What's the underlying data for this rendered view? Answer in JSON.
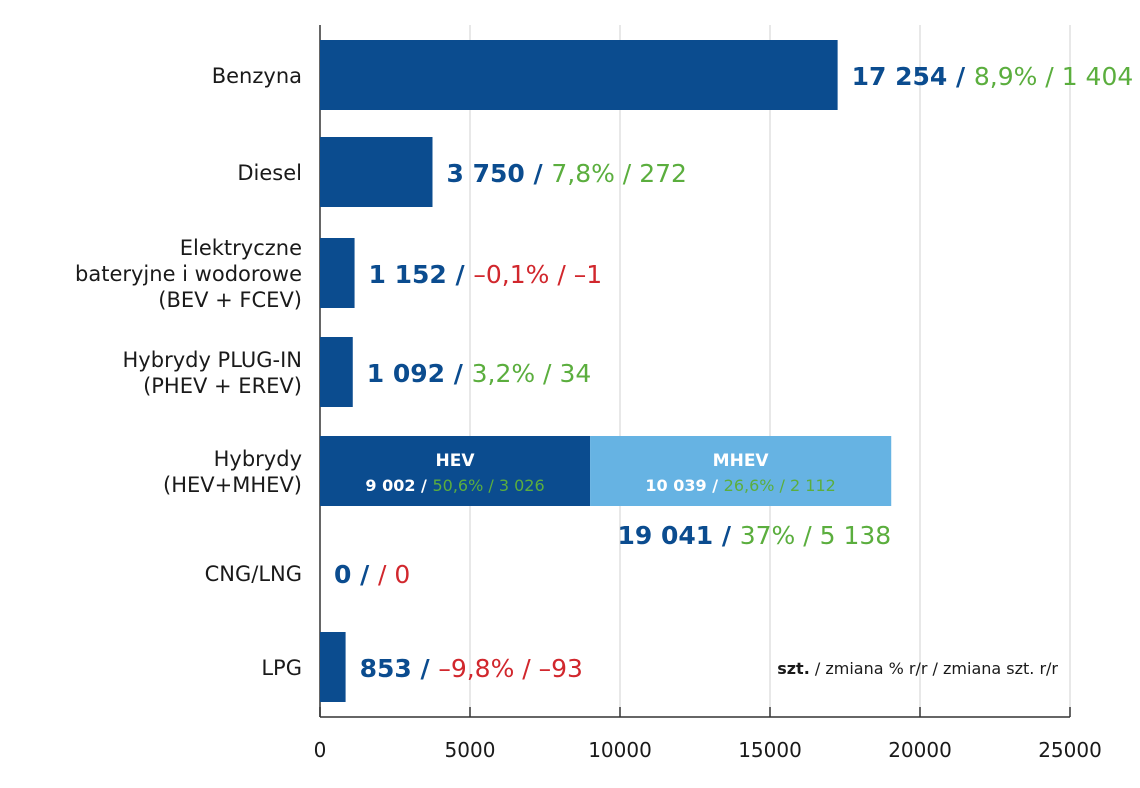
{
  "chart_data": {
    "type": "bar",
    "orientation": "horizontal",
    "xlim": [
      0,
      25000
    ],
    "xticks": [
      "0",
      "5000",
      "10000",
      "15000",
      "20000",
      "25000"
    ],
    "grid": true,
    "colors": {
      "bar": "#0B4C8F",
      "bar_light": "#66B3E3",
      "positive": "#5BAE3E",
      "negative": "#D1272D",
      "value": "#0B4C8F",
      "text": "#1a1a1a",
      "grid": "#d0d0d0"
    },
    "categories": [
      {
        "label": [
          "Benzyna"
        ],
        "value": 17254,
        "value_text": "17 254",
        "pct": "8,9%",
        "diff": "1 404",
        "trend": "positive"
      },
      {
        "label": [
          "Diesel"
        ],
        "value": 3750,
        "value_text": "3 750",
        "pct": "7,8%",
        "diff": "272",
        "trend": "positive"
      },
      {
        "label": [
          "Elektryczne",
          "bateryjne i wodorowe",
          "(BEV + FCEV)"
        ],
        "value": 1152,
        "value_text": "1 152",
        "pct": "–0,1%",
        "diff": "–1",
        "trend": "negative"
      },
      {
        "label": [
          "Hybrydy PLUG-IN",
          "(PHEV + EREV)"
        ],
        "value": 1092,
        "value_text": "1 092",
        "pct": "3,2%",
        "diff": "34",
        "trend": "positive"
      },
      {
        "label": [
          "Hybrydy",
          "(HEV+MHEV)"
        ],
        "value": 19041,
        "value_text": "19 041",
        "pct": "37%",
        "diff": "5 138",
        "trend": "positive",
        "segments": [
          {
            "name": "HEV",
            "value": 9002,
            "value_text": "9 002",
            "pct": "50,6%",
            "diff": "3 026"
          },
          {
            "name": "MHEV",
            "value": 10039,
            "value_text": "10 039",
            "pct": "26,6%",
            "diff": "2 112"
          }
        ]
      },
      {
        "label": [
          "CNG/LNG"
        ],
        "value": 0,
        "value_text": "0",
        "pct": "",
        "diff": "0",
        "trend": "negative"
      },
      {
        "label": [
          "LPG"
        ],
        "value": 853,
        "value_text": "853",
        "pct": "–9,8%",
        "diff": "–93",
        "trend": "negative"
      }
    ],
    "legend_note": {
      "bold": "szt.",
      "rest": " / zmiana % r/r / zmiana szt. r/r"
    }
  }
}
